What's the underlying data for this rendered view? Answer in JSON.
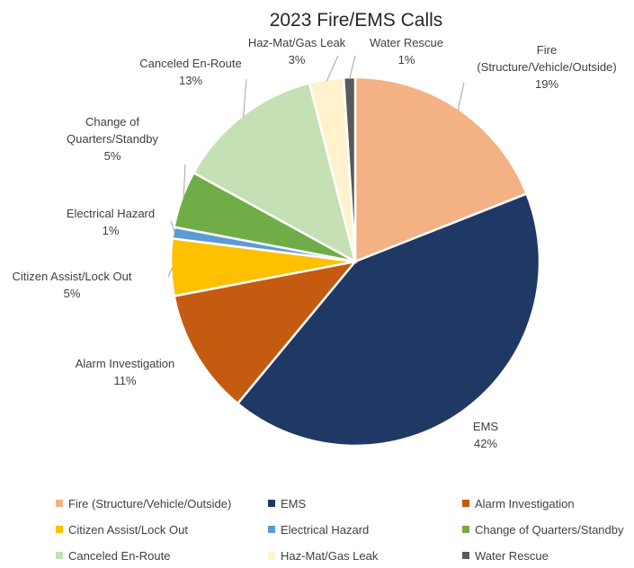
{
  "chart_data": {
    "type": "pie",
    "title": "2023 Fire/EMS Calls",
    "legend_position": "bottom",
    "slices": [
      {
        "name": "Fire (Structure/Vehicle/Outside)",
        "label_lines": [
          "Fire",
          "(Structure/Vehicle/Outside)"
        ],
        "value": 19,
        "value_label": "19%",
        "color": "#F4B183"
      },
      {
        "name": "EMS",
        "label_lines": [
          "EMS"
        ],
        "value": 42,
        "value_label": "42%",
        "color": "#203864"
      },
      {
        "name": "Alarm Investigation",
        "label_lines": [
          "Alarm Investigation"
        ],
        "value": 11,
        "value_label": "11%",
        "color": "#C55A11"
      },
      {
        "name": "Citizen Assist/Lock Out",
        "label_lines": [
          "Citizen Assist/Lock Out"
        ],
        "value": 5,
        "value_label": "5%",
        "color": "#FFC000"
      },
      {
        "name": "Electrical Hazard",
        "label_lines": [
          "Electrical Hazard"
        ],
        "value": 1,
        "value_label": "1%",
        "color": "#5B9BD5"
      },
      {
        "name": "Change of Quarters/Standby",
        "label_lines": [
          "Change of",
          "Quarters/Standby"
        ],
        "value": 5,
        "value_label": "5%",
        "color": "#70AD47"
      },
      {
        "name": "Canceled En-Route",
        "label_lines": [
          "Canceled En-Route"
        ],
        "value": 13,
        "value_label": "13%",
        "color": "#C5E0B4"
      },
      {
        "name": "Haz-Mat/Gas Leak",
        "label_lines": [
          "Haz-Mat/Gas Leak"
        ],
        "value": 3,
        "value_label": "3%",
        "color": "#FFF2CC"
      },
      {
        "name": "Water Rescue",
        "label_lines": [
          "Water Rescue"
        ],
        "value": 1,
        "value_label": "1%",
        "color": "#595959"
      }
    ]
  }
}
